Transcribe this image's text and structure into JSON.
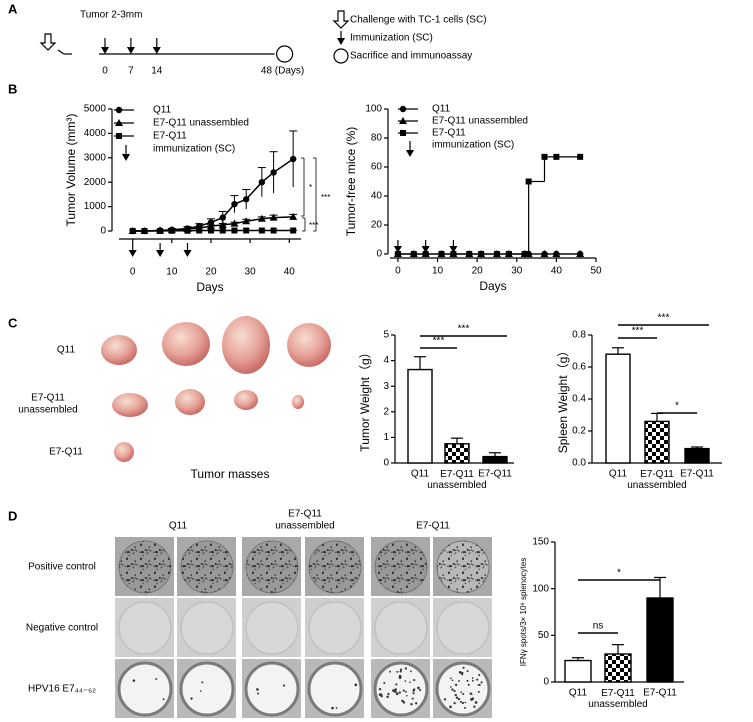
{
  "panel_labels": [
    "A",
    "B",
    "C",
    "D"
  ],
  "timeline": {
    "title": "Tumor 2-3mm",
    "ticks": [
      0,
      7,
      14,
      {
        "value": 48,
        "label": "48 (Days)"
      }
    ],
    "legend": [
      "Challenge with TC-1 cells (SC)",
      "Immunization (SC)",
      "Sacrifice and immunoassay"
    ]
  },
  "chart_data": [
    {
      "type": "line",
      "ylabel": "Tumor Volume (mm³)",
      "xlabel": "Days",
      "x": [
        0,
        3,
        7,
        10,
        14,
        17,
        20,
        23,
        26,
        29,
        33,
        36,
        41
      ],
      "xlim": [
        -3.5,
        43
      ],
      "xticks": [
        0,
        10,
        20,
        30,
        40
      ],
      "ylim": [
        0,
        5000
      ],
      "yticks": [
        0,
        1000,
        2000,
        3000,
        4000,
        5000
      ],
      "series": [
        {
          "name": "Q11",
          "marker": "circle",
          "color": "#000000",
          "values": [
            0,
            0,
            20,
            50,
            100,
            200,
            350,
            550,
            1100,
            1300,
            2000,
            2400,
            2950
          ],
          "errors": [
            0,
            0,
            20,
            50,
            80,
            100,
            150,
            250,
            350,
            400,
            600,
            850,
            1150
          ]
        },
        {
          "name": "E7-Q11 unassembled",
          "marker": "triangle",
          "color": "#000000",
          "values": [
            0,
            0,
            20,
            40,
            80,
            120,
            200,
            250,
            300,
            400,
            500,
            550,
            580
          ],
          "errors": [
            0,
            0,
            10,
            20,
            30,
            40,
            50,
            60,
            60,
            80,
            80,
            100,
            100
          ]
        },
        {
          "name": "E7-Q11",
          "marker": "square",
          "color": "#000000",
          "values": [
            0,
            0,
            0,
            10,
            10,
            20,
            20,
            20,
            20,
            20,
            20,
            20,
            20
          ],
          "errors": [
            0,
            0,
            0,
            5,
            5,
            10,
            10,
            10,
            10,
            10,
            10,
            10,
            10
          ]
        }
      ],
      "immunization": {
        "label": "immunization (SC)",
        "days": [
          0,
          7,
          14
        ]
      },
      "significance": [
        "*",
        "***",
        "***"
      ]
    },
    {
      "type": "step",
      "ylabel": "Tumor-free mice (%)",
      "xlabel": "Days",
      "x": [
        0,
        4,
        7,
        11,
        14,
        18,
        21,
        25,
        28,
        32,
        33,
        37,
        40,
        46
      ],
      "xlim": [
        -2,
        50
      ],
      "xticks": [
        0,
        10,
        20,
        30,
        40,
        50
      ],
      "ylim": [
        0,
        100
      ],
      "yticks": [
        0,
        20,
        40,
        60,
        80,
        100
      ],
      "series": [
        {
          "name": "Q11",
          "marker": "circle",
          "color": "#000000",
          "values": [
            0,
            0,
            0,
            0,
            0,
            0,
            0,
            0,
            0,
            0,
            0,
            0,
            0,
            0
          ]
        },
        {
          "name": "E7-Q11 unassembled",
          "marker": "triangle",
          "color": "#000000",
          "values": [
            0,
            0,
            0,
            0,
            0,
            0,
            0,
            0,
            0,
            0,
            0,
            0,
            0,
            0
          ]
        },
        {
          "name": "E7-Q11",
          "marker": "square",
          "color": "#000000",
          "values": [
            0,
            0,
            0,
            0,
            0,
            0,
            0,
            0,
            0,
            0,
            50,
            67,
            67,
            67
          ]
        }
      ],
      "immunization": {
        "label": "immunization (SC)",
        "days": [
          0,
          7,
          14
        ]
      }
    },
    {
      "type": "bar",
      "ylabel": "Tumor Weight（g）",
      "categories": [
        "Q11",
        "E7-Q11 unassembled",
        "E7-Q11"
      ],
      "values": [
        3.65,
        0.75,
        0.25
      ],
      "errors": [
        0.5,
        0.22,
        0.15
      ],
      "fills": [
        "white",
        "checker",
        "black"
      ],
      "ylim": [
        0,
        5
      ],
      "yticks": [
        0,
        1,
        2,
        3,
        4,
        5
      ],
      "comparisons": [
        {
          "label": "***",
          "pair": [
            0,
            2
          ]
        },
        {
          "label": "***",
          "pair": [
            0,
            1
          ]
        }
      ]
    },
    {
      "type": "bar",
      "ylabel": "Spleen Weight（g）",
      "categories": [
        "Q11",
        "E7-Q11 unassembled",
        "E7-Q11"
      ],
      "values": [
        0.68,
        0.26,
        0.09
      ],
      "errors": [
        0.04,
        0.05,
        0.01
      ],
      "fills": [
        "white",
        "checker",
        "black"
      ],
      "ylim": [
        0,
        0.8
      ],
      "yticks": [
        {
          "value": 0,
          "label": "0.0"
        },
        0.2,
        0.4,
        0.6,
        0.8
      ],
      "comparisons": [
        {
          "label": "***",
          "pair": [
            0,
            2
          ]
        },
        {
          "label": "***",
          "pair": [
            0,
            1
          ]
        },
        {
          "label": "*",
          "pair": [
            1,
            2
          ]
        }
      ]
    },
    {
      "type": "bar",
      "ylabel": "IFNγ spots/3× 10⁶ splenocytes",
      "categories": [
        "Q11",
        "E7-Q11 unassembled",
        "E7-Q11"
      ],
      "values": [
        23,
        30,
        90
      ],
      "errors": [
        3,
        10,
        22
      ],
      "fills": [
        "white",
        "checker",
        "black"
      ],
      "ylim": [
        0,
        150
      ],
      "yticks": [
        0,
        50,
        100,
        150
      ],
      "comparisons": [
        {
          "label": "*",
          "pair": [
            0,
            2
          ]
        },
        {
          "label": "ns",
          "pair": [
            0,
            1
          ]
        }
      ]
    }
  ],
  "tumor_photos": {
    "rows": [
      [
        "Q11"
      ],
      [
        "E7-Q11",
        "unassembled"
      ],
      [
        "E7-Q11"
      ]
    ],
    "caption": "Tumor masses"
  },
  "elispot": {
    "columns": [
      [
        "Q11"
      ],
      [
        "E7-Q11",
        "unassembled"
      ],
      [
        "E7-Q11"
      ]
    ],
    "rows": [
      "Positive control",
      "Negative control",
      "HPV16 E7₄₄₋₆₂"
    ]
  }
}
